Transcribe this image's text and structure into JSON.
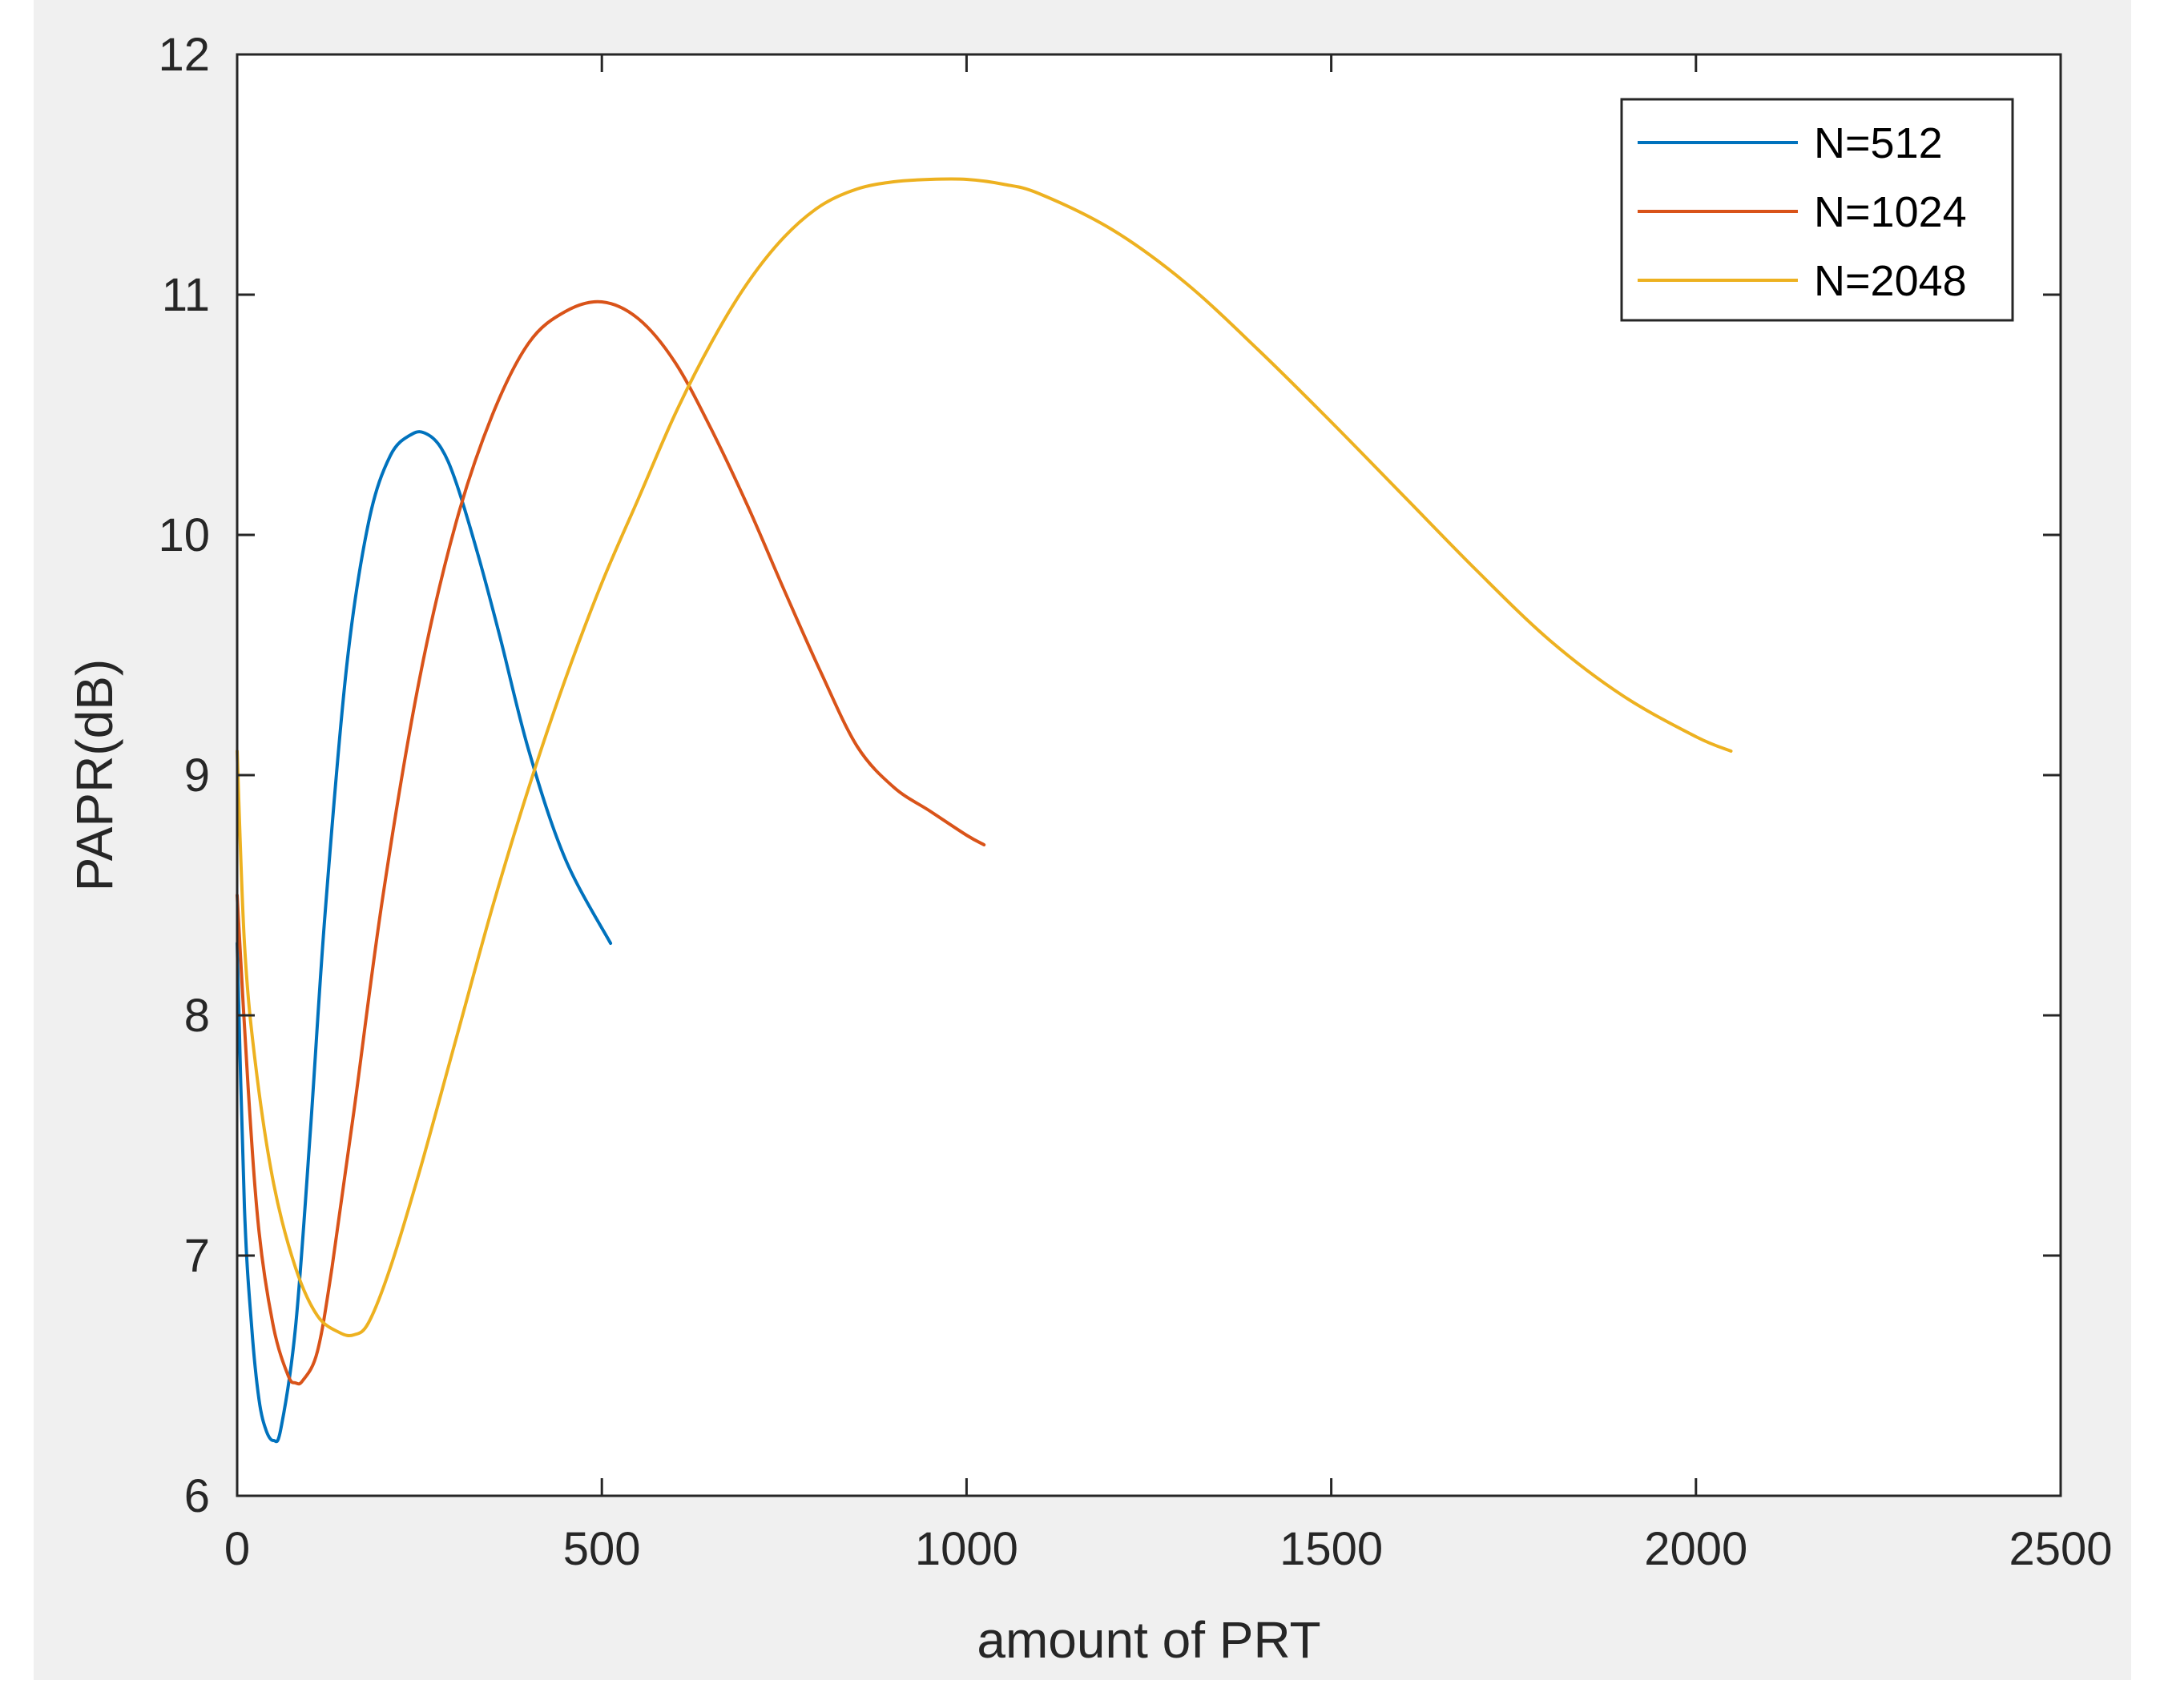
{
  "chart_data": {
    "type": "line",
    "xlabel": "amount of PRT",
    "ylabel": "PAPR(dB)",
    "xlim": [
      0,
      2500
    ],
    "ylim": [
      6,
      12
    ],
    "xticks": [
      "0",
      "500",
      "1000",
      "1500",
      "2000",
      "2500"
    ],
    "yticks": [
      "6",
      "7",
      "8",
      "9",
      "10",
      "11",
      "12"
    ],
    "grid": false,
    "legend_position": "top-right",
    "series": [
      {
        "name": "N=512",
        "color": "#0072bd",
        "x": [
          0,
          10,
          20,
          30,
          40,
          50,
          60,
          80,
          100,
          120,
          150,
          180,
          210,
          240,
          260,
          280,
          300,
          330,
          360,
          400,
          450,
          512
        ],
        "y": [
          8.3,
          7.2,
          6.7,
          6.4,
          6.27,
          6.23,
          6.28,
          6.7,
          7.5,
          8.4,
          9.45,
          10.05,
          10.33,
          10.42,
          10.42,
          10.36,
          10.22,
          9.92,
          9.58,
          9.1,
          8.65,
          8.3
        ]
      },
      {
        "name": "N=1024",
        "color": "#d95319",
        "x": [
          0,
          15,
          30,
          50,
          70,
          80,
          90,
          110,
          130,
          160,
          200,
          250,
          300,
          350,
          400,
          450,
          500,
          550,
          600,
          650,
          700,
          750,
          800,
          850,
          900,
          950,
          1000,
          1024
        ],
        "y": [
          8.5,
          7.7,
          7.1,
          6.7,
          6.5,
          6.47,
          6.48,
          6.6,
          6.95,
          7.6,
          8.5,
          9.4,
          10.05,
          10.5,
          10.8,
          10.93,
          10.97,
          10.9,
          10.72,
          10.44,
          10.12,
          9.77,
          9.43,
          9.12,
          8.95,
          8.85,
          8.75,
          8.71
        ]
      },
      {
        "name": "N=2048",
        "color": "#edb120",
        "x": [
          0,
          10,
          25,
          50,
          80,
          110,
          140,
          160,
          180,
          210,
          250,
          300,
          350,
          400,
          450,
          500,
          550,
          600,
          650,
          700,
          750,
          800,
          850,
          900,
          950,
          1000,
          1050,
          1100,
          1200,
          1300,
          1400,
          1500,
          1600,
          1700,
          1800,
          1900,
          2000,
          2048
        ],
        "y": [
          9.1,
          8.3,
          7.8,
          7.3,
          6.95,
          6.75,
          6.68,
          6.67,
          6.72,
          6.95,
          7.35,
          7.9,
          8.45,
          8.95,
          9.4,
          9.8,
          10.15,
          10.5,
          10.8,
          11.05,
          11.24,
          11.37,
          11.44,
          11.47,
          11.48,
          11.48,
          11.46,
          11.42,
          11.27,
          11.05,
          10.77,
          10.47,
          10.16,
          9.85,
          9.56,
          9.33,
          9.16,
          9.1
        ]
      }
    ]
  }
}
